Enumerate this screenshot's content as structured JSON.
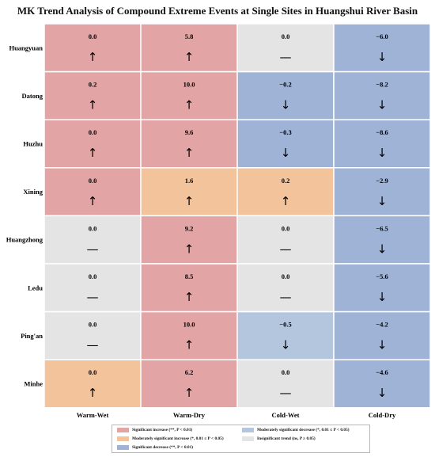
{
  "title": "MK Trend Analysis of Compound Extreme Events at Single Sites in Huangshui River Basin",
  "colors": {
    "sig_inc": "#e3a4a6",
    "mod_inc": "#f3c39c",
    "sig_dec": "#9fb3d6",
    "mod_dec": "#b3c6de",
    "ns": "#e4e4e4"
  },
  "arrows": {
    "up": "↑",
    "down": "↓",
    "flat": "—"
  },
  "chart_data": {
    "type": "heatmap",
    "title": "MK Trend Analysis of Compound Extreme Events at Single Sites in Huangshui River Basin",
    "columns": [
      "Warm-Wet",
      "Warm-Dry",
      "Cold-Wet",
      "Cold-Dry"
    ],
    "rows": [
      "Huangyuan",
      "Datong",
      "Huzhu",
      "Xining",
      "Huangzhong",
      "Ledu",
      "Ping'an",
      "Minhe"
    ],
    "values": [
      [
        "0.0",
        "5.8",
        "0.0",
        "−6.0"
      ],
      [
        "0.2",
        "10.0",
        "−0.2",
        "−8.2"
      ],
      [
        "0.0",
        "9.6",
        "−0.3",
        "−8.6"
      ],
      [
        "0.0",
        "1.6",
        "0.2",
        "−2.9"
      ],
      [
        "0.0",
        "9.2",
        "0.0",
        "−6.5"
      ],
      [
        "0.0",
        "8.5",
        "0.0",
        "−5.6"
      ],
      [
        "0.0",
        "10.0",
        "−0.5",
        "−4.2"
      ],
      [
        "0.0",
        "6.2",
        "0.0",
        "−4.6"
      ]
    ],
    "trend": [
      [
        "up",
        "up",
        "flat",
        "down"
      ],
      [
        "up",
        "up",
        "down",
        "down"
      ],
      [
        "up",
        "up",
        "down",
        "down"
      ],
      [
        "up",
        "up",
        "up",
        "down"
      ],
      [
        "flat",
        "up",
        "flat",
        "down"
      ],
      [
        "flat",
        "up",
        "flat",
        "down"
      ],
      [
        "flat",
        "up",
        "down",
        "down"
      ],
      [
        "up",
        "up",
        "flat",
        "down"
      ]
    ],
    "category": [
      [
        "sig_inc",
        "sig_inc",
        "ns",
        "sig_dec"
      ],
      [
        "sig_inc",
        "sig_inc",
        "sig_dec",
        "sig_dec"
      ],
      [
        "sig_inc",
        "sig_inc",
        "sig_dec",
        "sig_dec"
      ],
      [
        "sig_inc",
        "mod_inc",
        "mod_inc",
        "sig_dec"
      ],
      [
        "ns",
        "sig_inc",
        "ns",
        "sig_dec"
      ],
      [
        "ns",
        "sig_inc",
        "ns",
        "sig_dec"
      ],
      [
        "ns",
        "sig_inc",
        "mod_dec",
        "sig_dec"
      ],
      [
        "mod_inc",
        "sig_inc",
        "ns",
        "sig_dec"
      ]
    ],
    "legend": [
      {
        "key": "sig_inc",
        "label": "Significant increase (**, P < 0.01)"
      },
      {
        "key": "mod_dec",
        "label": "Moderately significant decrease (*, 0.01 ≤ P < 0.05)"
      },
      {
        "key": "mod_inc",
        "label": "Moderately significant increase (*, 0.01 ≤ P < 0.05)"
      },
      {
        "key": "ns",
        "label": "Insignificant trend (ns, P ≥ 0.05)"
      },
      {
        "key": "sig_dec",
        "label": "Significant decrease (**, P < 0.01)"
      }
    ]
  }
}
